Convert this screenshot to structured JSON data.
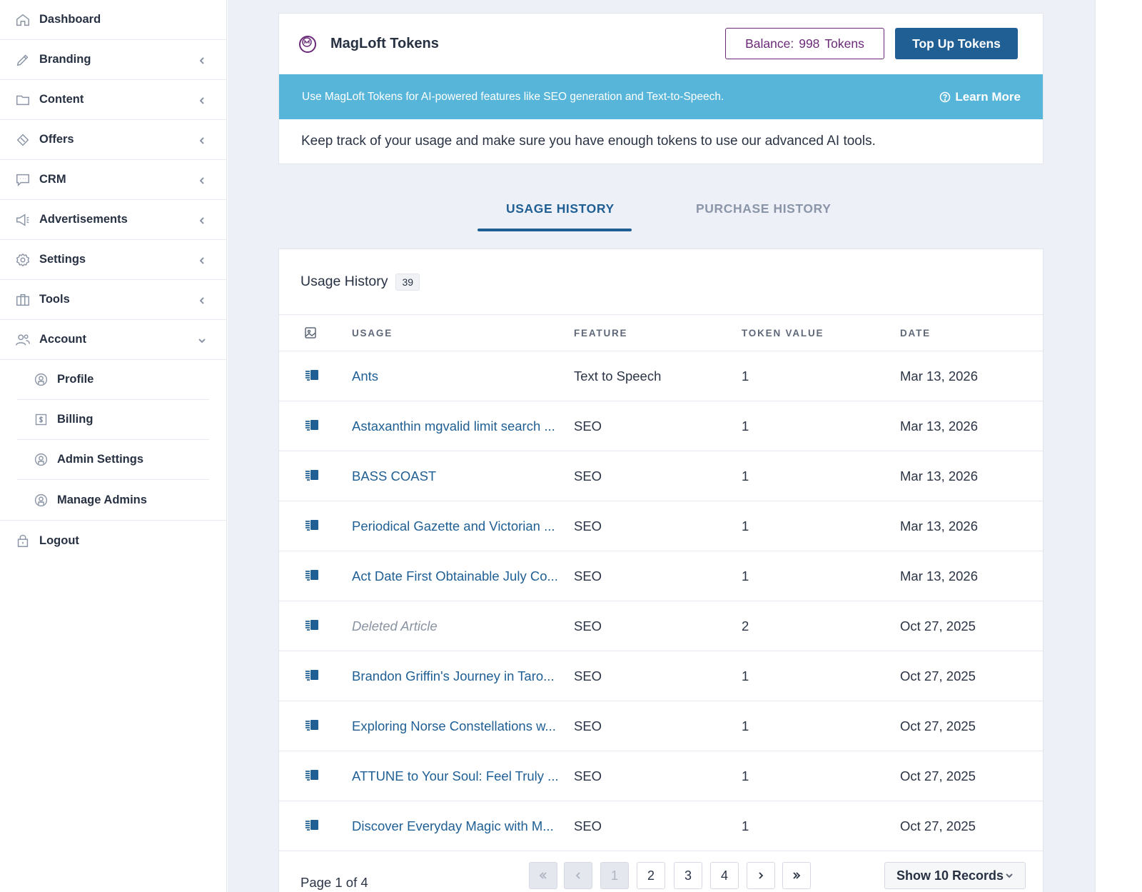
{
  "sidebar": {
    "items": [
      {
        "label": "Dashboard",
        "icon": "home-icon"
      },
      {
        "label": "Branding",
        "icon": "brush-icon"
      },
      {
        "label": "Content",
        "icon": "folder-icon"
      },
      {
        "label": "Offers",
        "icon": "tag-icon"
      },
      {
        "label": "CRM",
        "icon": "chat-icon"
      },
      {
        "label": "Advertisements",
        "icon": "megaphone-icon"
      },
      {
        "label": "Settings",
        "icon": "gear-icon"
      },
      {
        "label": "Tools",
        "icon": "briefcase-icon"
      },
      {
        "label": "Account",
        "icon": "users-icon"
      }
    ],
    "account_sub": [
      {
        "label": "Profile",
        "icon": "user-circle-icon"
      },
      {
        "label": "Billing",
        "icon": "billing-icon"
      },
      {
        "label": "Admin Settings",
        "icon": "user-circle-icon"
      },
      {
        "label": "Manage Admins",
        "icon": "user-circle-icon"
      }
    ],
    "logout": {
      "label": "Logout",
      "icon": "lock-icon"
    }
  },
  "tokens_card": {
    "title": "MagLoft Tokens",
    "balance_prefix": "Balance:",
    "balance_value": "998",
    "balance_suffix": "Tokens",
    "topup_label": "Top Up Tokens",
    "info_text": "Use MagLoft Tokens for AI-powered features like SEO generation and Text-to-Speech.",
    "learn_more": "Learn More",
    "description": "Keep track of your usage and make sure you have enough tokens to use our advanced AI tools."
  },
  "tabs": {
    "usage": "USAGE HISTORY",
    "purchase": "PURCHASE HISTORY"
  },
  "usage_table": {
    "title": "Usage History",
    "count": "39",
    "columns": {
      "usage": "USAGE",
      "feature": "FEATURE",
      "token": "TOKEN VALUE",
      "date": "DATE"
    },
    "rows": [
      {
        "usage": "Ants",
        "feature": "Text to Speech",
        "token": "1",
        "date": "Mar 13, 2026"
      },
      {
        "usage": "Astaxanthin mgvalid limit search ...",
        "feature": "SEO",
        "token": "1",
        "date": "Mar 13, 2026"
      },
      {
        "usage": "BASS COAST",
        "feature": "SEO",
        "token": "1",
        "date": "Mar 13, 2026"
      },
      {
        "usage": "Periodical Gazette and Victorian ...",
        "feature": "SEO",
        "token": "1",
        "date": "Mar 13, 2026"
      },
      {
        "usage": "Act Date First Obtainable July Co...",
        "feature": "SEO",
        "token": "1",
        "date": "Mar 13, 2026"
      },
      {
        "usage": "Deleted Article",
        "feature": "SEO",
        "token": "2",
        "date": "Oct 27, 2025"
      },
      {
        "usage": "Brandon Griffin's Journey in Taro...",
        "feature": "SEO",
        "token": "1",
        "date": "Oct 27, 2025"
      },
      {
        "usage": "Exploring Norse Constellations w...",
        "feature": "SEO",
        "token": "1",
        "date": "Oct 27, 2025"
      },
      {
        "usage": "ATTUNE to Your Soul: Feel Truly ...",
        "feature": "SEO",
        "token": "1",
        "date": "Oct 27, 2025"
      },
      {
        "usage": "Discover Everyday Magic with M...",
        "feature": "SEO",
        "token": "1",
        "date": "Oct 27, 2025"
      }
    ]
  },
  "pagination": {
    "info": "Page 1 of 4",
    "pages": [
      "1",
      "2",
      "3",
      "4"
    ],
    "records_label": "Show 10 Records"
  },
  "colors": {
    "primary": "#1f5f94",
    "accent_purple": "#6b2a78",
    "info_bar": "#56b5d8",
    "background": "#edf0f6"
  }
}
